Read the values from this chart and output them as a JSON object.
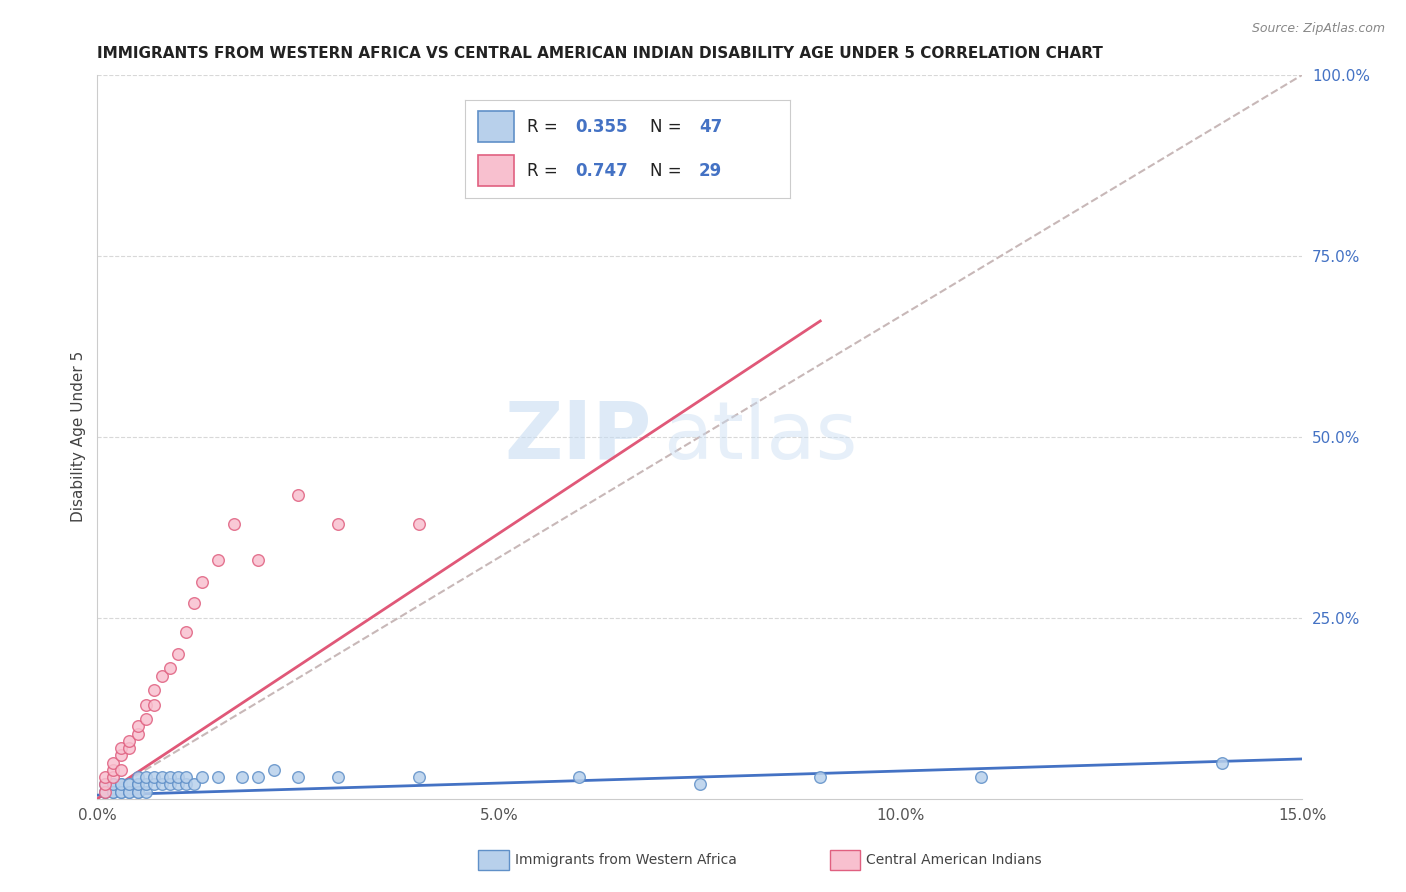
{
  "title": "IMMIGRANTS FROM WESTERN AFRICA VS CENTRAL AMERICAN INDIAN DISABILITY AGE UNDER 5 CORRELATION CHART",
  "source": "Source: ZipAtlas.com",
  "ylabel": "Disability Age Under 5",
  "legend_label1": "Immigrants from Western Africa",
  "legend_label2": "Central American Indians",
  "R1": "0.355",
  "N1": "47",
  "R2": "0.747",
  "N2": "29",
  "color1": "#b8d0eb",
  "color2": "#f8c0cf",
  "edge_color1": "#6090c8",
  "edge_color2": "#e06080",
  "line_color1": "#4472c4",
  "line_color2": "#e05878",
  "ref_line_color": "#c8b8b8",
  "text_blue": "#4472c4",
  "text_dark": "#222222",
  "xlim": [
    0.0,
    0.15
  ],
  "ylim": [
    0.0,
    1.0
  ],
  "xticks": [
    0.0,
    0.05,
    0.1,
    0.15
  ],
  "xticklabels": [
    "0.0%",
    "5.0%",
    "10.0%",
    "15.0%"
  ],
  "yticks_right": [
    0.0,
    0.25,
    0.5,
    0.75,
    1.0
  ],
  "ytick_right_labels": [
    "",
    "25.0%",
    "50.0%",
    "75.0%",
    "100.0%"
  ],
  "watermark_zip": "ZIP",
  "watermark_atlas": "atlas",
  "scatter1_x": [
    0.001,
    0.001,
    0.001,
    0.002,
    0.002,
    0.002,
    0.002,
    0.003,
    0.003,
    0.003,
    0.003,
    0.004,
    0.004,
    0.004,
    0.004,
    0.005,
    0.005,
    0.005,
    0.005,
    0.005,
    0.006,
    0.006,
    0.006,
    0.007,
    0.007,
    0.008,
    0.008,
    0.009,
    0.009,
    0.01,
    0.01,
    0.011,
    0.011,
    0.012,
    0.013,
    0.015,
    0.018,
    0.02,
    0.022,
    0.025,
    0.03,
    0.04,
    0.06,
    0.075,
    0.09,
    0.11,
    0.14
  ],
  "scatter1_y": [
    0.01,
    0.02,
    0.01,
    0.01,
    0.02,
    0.01,
    0.02,
    0.01,
    0.02,
    0.01,
    0.02,
    0.01,
    0.02,
    0.01,
    0.02,
    0.01,
    0.02,
    0.01,
    0.02,
    0.03,
    0.01,
    0.02,
    0.03,
    0.02,
    0.03,
    0.02,
    0.03,
    0.02,
    0.03,
    0.02,
    0.03,
    0.02,
    0.03,
    0.02,
    0.03,
    0.03,
    0.03,
    0.03,
    0.04,
    0.03,
    0.03,
    0.03,
    0.03,
    0.02,
    0.03,
    0.03,
    0.05
  ],
  "scatter2_x": [
    0.001,
    0.001,
    0.001,
    0.002,
    0.002,
    0.002,
    0.003,
    0.003,
    0.003,
    0.004,
    0.004,
    0.005,
    0.005,
    0.006,
    0.006,
    0.007,
    0.007,
    0.008,
    0.009,
    0.01,
    0.011,
    0.012,
    0.013,
    0.015,
    0.017,
    0.02,
    0.025,
    0.03,
    0.04
  ],
  "scatter2_y": [
    0.01,
    0.02,
    0.03,
    0.03,
    0.04,
    0.05,
    0.04,
    0.06,
    0.07,
    0.07,
    0.08,
    0.09,
    0.1,
    0.11,
    0.13,
    0.13,
    0.15,
    0.17,
    0.18,
    0.2,
    0.23,
    0.27,
    0.3,
    0.33,
    0.38,
    0.33,
    0.42,
    0.38,
    0.38
  ],
  "line1_x": [
    0.0,
    0.15
  ],
  "line1_y": [
    0.005,
    0.055
  ],
  "line2_x": [
    0.0,
    0.09
  ],
  "line2_y": [
    0.0,
    0.66
  ],
  "ref_line_x": [
    0.0,
    0.15
  ],
  "ref_line_y": [
    0.0,
    1.0
  ]
}
